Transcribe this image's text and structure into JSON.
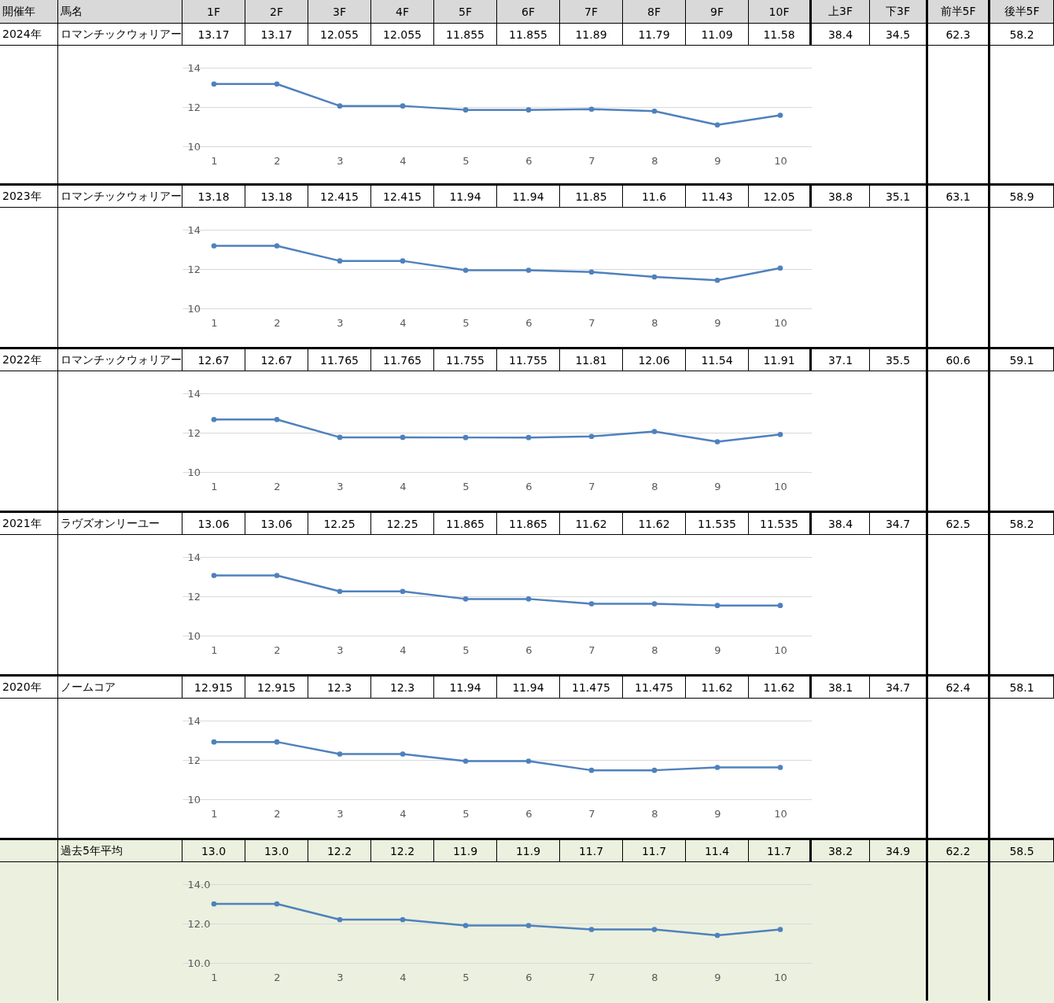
{
  "chart_data": [
    {
      "type": "line",
      "annotations": [
        "開催年",
        "馬名",
        "1F",
        "2F",
        "3F",
        "4F",
        "5F",
        "6F",
        "7F",
        "8F",
        "9F",
        "10F",
        "上3F",
        "下3F",
        "前半5F",
        "後半5F",
        "2024年",
        "ロマンチックウォリアー",
        "38.4",
        "34.5",
        "62.3",
        "58.2"
      ],
      "categories": [
        "1",
        "2",
        "3",
        "4",
        "5",
        "6",
        "7",
        "8",
        "9",
        "10"
      ],
      "values": [
        13.17,
        13.17,
        12.055,
        12.055,
        11.855,
        11.855,
        11.89,
        11.79,
        11.09,
        11.58
      ],
      "value_labels": [
        "13.17",
        "13.17",
        "12.055",
        "12.055",
        "11.855",
        "11.855",
        "11.89",
        "11.79",
        "11.09",
        "11.58"
      ],
      "color": "#4f81bd",
      "ylim": [
        10,
        14
      ],
      "yticks": [
        10,
        12,
        14
      ],
      "grid": "y",
      "marker": "circle"
    },
    {
      "type": "line",
      "annotations": [
        "2023年",
        "ロマンチックウォリアー",
        "38.8",
        "35.1",
        "63.1",
        "58.9"
      ],
      "categories": [
        "1",
        "2",
        "3",
        "4",
        "5",
        "6",
        "7",
        "8",
        "9",
        "10"
      ],
      "values": [
        13.18,
        13.18,
        12.415,
        12.415,
        11.94,
        11.94,
        11.85,
        11.6,
        11.43,
        12.05
      ],
      "value_labels": [
        "13.18",
        "13.18",
        "12.415",
        "12.415",
        "11.94",
        "11.94",
        "11.85",
        "11.6",
        "11.43",
        "12.05"
      ],
      "color": "#4f81bd",
      "ylim": [
        10,
        14
      ],
      "yticks": [
        10,
        12,
        14
      ],
      "grid": "y",
      "marker": "circle"
    },
    {
      "type": "line",
      "annotations": [
        "2022年",
        "ロマンチックウォリアー",
        "37.1",
        "35.5",
        "60.6",
        "59.1"
      ],
      "categories": [
        "1",
        "2",
        "3",
        "4",
        "5",
        "6",
        "7",
        "8",
        "9",
        "10"
      ],
      "values": [
        12.67,
        12.67,
        11.765,
        11.765,
        11.755,
        11.755,
        11.81,
        12.06,
        11.54,
        11.91
      ],
      "value_labels": [
        "12.67",
        "12.67",
        "11.765",
        "11.765",
        "11.755",
        "11.755",
        "11.81",
        "12.06",
        "11.54",
        "11.91"
      ],
      "color": "#4f81bd",
      "ylim": [
        10,
        14
      ],
      "yticks": [
        10,
        12,
        14
      ],
      "grid": "y",
      "marker": "circle"
    },
    {
      "type": "line",
      "annotations": [
        "2021年",
        "ラヴズオンリーユー",
        "38.4",
        "34.7",
        "62.5",
        "58.2"
      ],
      "categories": [
        "1",
        "2",
        "3",
        "4",
        "5",
        "6",
        "7",
        "8",
        "9",
        "10"
      ],
      "values": [
        13.06,
        13.06,
        12.25,
        12.25,
        11.865,
        11.865,
        11.62,
        11.62,
        11.535,
        11.535
      ],
      "value_labels": [
        "13.06",
        "13.06",
        "12.25",
        "12.25",
        "11.865",
        "11.865",
        "11.62",
        "11.62",
        "11.535",
        "11.535"
      ],
      "color": "#4f81bd",
      "ylim": [
        10,
        14
      ],
      "yticks": [
        10,
        12,
        14
      ],
      "grid": "y",
      "marker": "circle"
    },
    {
      "type": "line",
      "annotations": [
        "2020年",
        "ノームコア",
        "38.1",
        "34.7",
        "62.4",
        "58.1"
      ],
      "categories": [
        "1",
        "2",
        "3",
        "4",
        "5",
        "6",
        "7",
        "8",
        "9",
        "10"
      ],
      "values": [
        12.915,
        12.915,
        12.3,
        12.3,
        11.94,
        11.94,
        11.475,
        11.475,
        11.62,
        11.62
      ],
      "value_labels": [
        "12.915",
        "12.915",
        "12.3",
        "12.3",
        "11.94",
        "11.94",
        "11.475",
        "11.475",
        "11.62",
        "11.62"
      ],
      "color": "#4f81bd",
      "ylim": [
        10,
        14
      ],
      "yticks": [
        10,
        12,
        14
      ],
      "grid": "y",
      "marker": "circle"
    },
    {
      "type": "line",
      "annotations": [
        "過去5年平均",
        "38.2",
        "34.9",
        "62.2",
        "58.5"
      ],
      "categories": [
        "1",
        "2",
        "3",
        "4",
        "5",
        "6",
        "7",
        "8",
        "9",
        "10"
      ],
      "values": [
        13.0,
        13.0,
        12.2,
        12.2,
        11.9,
        11.9,
        11.7,
        11.7,
        11.4,
        11.7
      ],
      "value_labels": [
        "13.0",
        "13.0",
        "12.2",
        "12.2",
        "11.9",
        "11.9",
        "11.7",
        "11.7",
        "11.4",
        "11.7"
      ],
      "color": "#4f81bd",
      "ylim": [
        10,
        14
      ],
      "yticks": [
        {
          "value": 10,
          "label": "10.0"
        },
        {
          "value": 12,
          "label": "12.0"
        },
        {
          "value": 14,
          "label": "14.0"
        }
      ],
      "grid": "y",
      "marker": "circle"
    }
  ]
}
